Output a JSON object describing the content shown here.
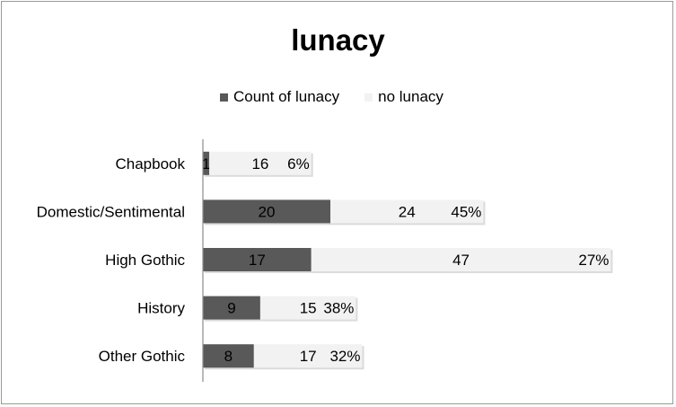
{
  "chart_data": {
    "type": "bar",
    "orientation": "horizontal",
    "stacked": true,
    "title": "lunacy",
    "categories": [
      "Chapbook",
      "Domestic/Sentimental",
      "High Gothic",
      "History",
      "Other Gothic"
    ],
    "series": [
      {
        "name": "Count of lunacy",
        "values": [
          1,
          20,
          17,
          9,
          8
        ],
        "color": "#595959"
      },
      {
        "name": "no lunacy",
        "values": [
          16,
          24,
          47,
          15,
          17
        ],
        "color": "#f2f2f2"
      }
    ],
    "end_labels": [
      "6%",
      "45%",
      "27%",
      "38%",
      "32%"
    ],
    "legend_position": "top",
    "grid": false,
    "xlim": [
      0,
      64
    ]
  }
}
